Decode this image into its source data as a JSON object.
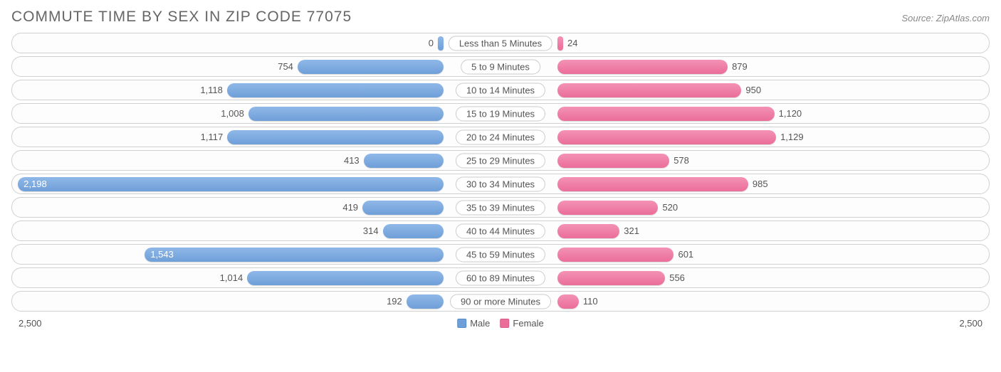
{
  "title": "COMMUTE TIME BY SEX IN ZIP CODE 77075",
  "source": "Source: ZipAtlas.com",
  "axis_max": 2500,
  "axis_left_label": "2,500",
  "axis_right_label": "2,500",
  "legend": {
    "male": "Male",
    "female": "Female"
  },
  "colors": {
    "male_top": "#8fb8e8",
    "male_bottom": "#6f9fd8",
    "female_top": "#f492b5",
    "female_bottom": "#ea6d99",
    "row_border": "#d0d0d0",
    "pill_border": "#cccccc",
    "text": "#555555",
    "title_text": "#666666",
    "background": "#ffffff"
  },
  "typography": {
    "title_fontsize": 21,
    "title_letterspacing": 1,
    "label_fontsize": 13
  },
  "inner_label_threshold": 1300,
  "rows": [
    {
      "category": "Less than 5 Minutes",
      "male": 0,
      "male_label": "0",
      "female": 24,
      "female_label": "24"
    },
    {
      "category": "5 to 9 Minutes",
      "male": 754,
      "male_label": "754",
      "female": 879,
      "female_label": "879"
    },
    {
      "category": "10 to 14 Minutes",
      "male": 1118,
      "male_label": "1,118",
      "female": 950,
      "female_label": "950"
    },
    {
      "category": "15 to 19 Minutes",
      "male": 1008,
      "male_label": "1,008",
      "female": 1120,
      "female_label": "1,120"
    },
    {
      "category": "20 to 24 Minutes",
      "male": 1117,
      "male_label": "1,117",
      "female": 1129,
      "female_label": "1,129"
    },
    {
      "category": "25 to 29 Minutes",
      "male": 413,
      "male_label": "413",
      "female": 578,
      "female_label": "578"
    },
    {
      "category": "30 to 34 Minutes",
      "male": 2198,
      "male_label": "2,198",
      "female": 985,
      "female_label": "985"
    },
    {
      "category": "35 to 39 Minutes",
      "male": 419,
      "male_label": "419",
      "female": 520,
      "female_label": "520"
    },
    {
      "category": "40 to 44 Minutes",
      "male": 314,
      "male_label": "314",
      "female": 321,
      "female_label": "321"
    },
    {
      "category": "45 to 59 Minutes",
      "male": 1543,
      "male_label": "1,543",
      "female": 601,
      "female_label": "601"
    },
    {
      "category": "60 to 89 Minutes",
      "male": 1014,
      "male_label": "1,014",
      "female": 556,
      "female_label": "556"
    },
    {
      "category": "90 or more Minutes",
      "male": 192,
      "male_label": "192",
      "female": 110,
      "female_label": "110"
    }
  ]
}
